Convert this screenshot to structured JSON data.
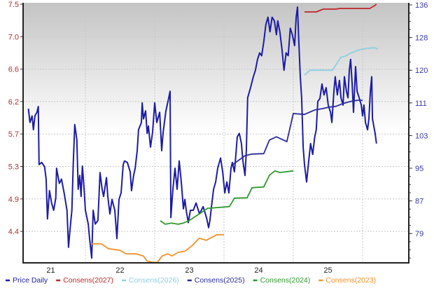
{
  "chart_data": {
    "type": "line",
    "title": "",
    "xlabel": "",
    "ylabel_left": "",
    "ylabel_right": "",
    "x_tick_labels": [
      "21",
      "22",
      "23",
      "24",
      "25"
    ],
    "left_tick_labels": [
      "7.5",
      "7.0",
      "6.6",
      "6.2",
      "5.7",
      "5.3",
      "4.9",
      "4.4"
    ],
    "right_tick_labels": [
      "136",
      "128",
      "120",
      "111",
      "103",
      "95",
      "87",
      "79"
    ],
    "left_axis_color": "#b03030",
    "right_axis_color": "#3a3aa8",
    "grid": true,
    "legend_position": "bottom",
    "background": "gradient gray to white",
    "series": [
      {
        "name": "Price Daily",
        "axis": "left",
        "color": "#1c1ca6",
        "points": [
          [
            "2021-03-07",
            6.06
          ],
          [
            "2021-03-15",
            5.87
          ],
          [
            "2021-03-26",
            5.96
          ],
          [
            "2021-04-02",
            5.77
          ],
          [
            "2021-04-10",
            5.96
          ],
          [
            "2021-04-21",
            6.01
          ],
          [
            "2021-04-28",
            6.09
          ],
          [
            "2021-05-02",
            5.29
          ],
          [
            "2021-05-16",
            5.32
          ],
          [
            "2021-05-31",
            5.26
          ],
          [
            "2021-06-08",
            5.09
          ],
          [
            "2021-06-15",
            4.54
          ],
          [
            "2021-06-26",
            4.93
          ],
          [
            "2021-07-07",
            4.76
          ],
          [
            "2021-07-18",
            4.66
          ],
          [
            "2021-07-29",
            4.83
          ],
          [
            "2021-08-02",
            5.24
          ],
          [
            "2021-08-17",
            5.03
          ],
          [
            "2021-08-28",
            5.09
          ],
          [
            "2021-09-11",
            4.9
          ],
          [
            "2021-09-26",
            4.66
          ],
          [
            "2021-10-04",
            4.15
          ],
          [
            "2021-10-11",
            4.37
          ],
          [
            "2021-10-22",
            4.66
          ],
          [
            "2021-10-29",
            5.29
          ],
          [
            "2021-11-06",
            5.84
          ],
          [
            "2021-11-17",
            5.63
          ],
          [
            "2021-11-24",
            4.95
          ],
          [
            "2021-12-02",
            5.14
          ],
          [
            "2021-12-09",
            4.85
          ],
          [
            "2021-12-16",
            5.27
          ],
          [
            "2021-12-24",
            5.0
          ],
          [
            "2022-01-01",
            4.66
          ],
          [
            "2022-01-16",
            4.47
          ],
          [
            "2022-01-23",
            4.27
          ],
          [
            "2022-02-03",
            4.0
          ],
          [
            "2022-02-11",
            4.66
          ],
          [
            "2022-02-22",
            4.47
          ],
          [
            "2022-03-08",
            4.52
          ],
          [
            "2022-03-19",
            5.18
          ],
          [
            "2022-03-30",
            4.95
          ],
          [
            "2022-04-07",
            4.85
          ],
          [
            "2022-04-22",
            5.11
          ],
          [
            "2022-04-29",
            4.85
          ],
          [
            "2022-05-10",
            4.61
          ],
          [
            "2022-05-21",
            4.81
          ],
          [
            "2022-06-05",
            4.66
          ],
          [
            "2022-06-16",
            4.27
          ],
          [
            "2022-06-27",
            4.81
          ],
          [
            "2022-07-08",
            4.9
          ],
          [
            "2022-07-19",
            5.29
          ],
          [
            "2022-07-26",
            5.34
          ],
          [
            "2022-08-10",
            5.32
          ],
          [
            "2022-08-25",
            5.19
          ],
          [
            "2022-09-01",
            4.93
          ],
          [
            "2022-09-12",
            5.14
          ],
          [
            "2022-09-20",
            5.24
          ],
          [
            "2022-10-01",
            5.48
          ],
          [
            "2022-10-08",
            5.77
          ],
          [
            "2022-10-23",
            5.87
          ],
          [
            "2022-10-27",
            6.14
          ],
          [
            "2022-11-03",
            5.92
          ],
          [
            "2022-11-14",
            6.03
          ],
          [
            "2022-11-22",
            5.72
          ],
          [
            "2022-11-29",
            5.82
          ],
          [
            "2022-12-10",
            5.53
          ],
          [
            "2022-12-21",
            5.74
          ],
          [
            "2023-01-01",
            6.14
          ],
          [
            "2023-01-12",
            5.87
          ],
          [
            "2023-01-27",
            6.01
          ],
          [
            "2023-02-07",
            5.48
          ],
          [
            "2023-02-14",
            5.72
          ],
          [
            "2023-03-01",
            6.03
          ],
          [
            "2023-03-12",
            6.16
          ],
          [
            "2023-03-23",
            6.3
          ],
          [
            "2023-03-27",
            4.56
          ],
          [
            "2023-04-07",
            4.95
          ],
          [
            "2023-04-18",
            5.24
          ],
          [
            "2023-04-29",
            4.95
          ],
          [
            "2023-05-10",
            5.34
          ],
          [
            "2023-05-21",
            5.05
          ],
          [
            "2023-06-01",
            4.68
          ],
          [
            "2023-06-09",
            4.81
          ],
          [
            "2023-06-16",
            4.66
          ],
          [
            "2023-06-27",
            4.49
          ],
          [
            "2023-07-08",
            4.66
          ],
          [
            "2023-07-23",
            4.66
          ],
          [
            "2023-08-07",
            4.76
          ],
          [
            "2023-08-25",
            4.61
          ],
          [
            "2023-09-13",
            4.71
          ],
          [
            "2023-10-01",
            4.56
          ],
          [
            "2023-10-12",
            4.42
          ],
          [
            "2023-10-19",
            4.52
          ],
          [
            "2023-10-27",
            4.71
          ],
          [
            "2023-11-07",
            4.95
          ],
          [
            "2023-11-18",
            5.05
          ],
          [
            "2023-11-29",
            5.24
          ],
          [
            "2023-12-14",
            5.38
          ],
          [
            "2023-12-25",
            5.19
          ],
          [
            "2024-01-05",
            4.9
          ],
          [
            "2024-01-16",
            5.05
          ],
          [
            "2024-01-27",
            4.9
          ],
          [
            "2024-02-07",
            5.24
          ],
          [
            "2024-02-14",
            5.32
          ],
          [
            "2024-02-25",
            5.19
          ],
          [
            "2024-03-04",
            5.43
          ],
          [
            "2024-03-11",
            5.67
          ],
          [
            "2024-03-22",
            5.72
          ],
          [
            "2024-04-02",
            5.58
          ],
          [
            "2024-04-10",
            5.34
          ],
          [
            "2024-04-21",
            5.14
          ],
          [
            "2024-04-28",
            5.48
          ],
          [
            "2024-05-05",
            6.21
          ],
          [
            "2024-05-20",
            6.35
          ],
          [
            "2024-06-04",
            6.5
          ],
          [
            "2024-06-15",
            6.59
          ],
          [
            "2024-06-26",
            6.74
          ],
          [
            "2024-07-07",
            6.83
          ],
          [
            "2024-07-18",
            6.79
          ],
          [
            "2024-07-29",
            6.98
          ],
          [
            "2024-08-09",
            7.22
          ],
          [
            "2024-08-20",
            7.32
          ],
          [
            "2024-08-31",
            7.12
          ],
          [
            "2024-09-11",
            7.32
          ],
          [
            "2024-09-23",
            7.27
          ],
          [
            "2024-10-04",
            7.08
          ],
          [
            "2024-10-11",
            7.27
          ],
          [
            "2024-10-22",
            7.12
          ],
          [
            "2024-11-02",
            6.88
          ],
          [
            "2024-11-13",
            6.59
          ],
          [
            "2024-11-24",
            6.83
          ],
          [
            "2024-12-05",
            6.79
          ],
          [
            "2024-12-16",
            7.17
          ],
          [
            "2024-12-27",
            7.08
          ],
          [
            "2025-01-08",
            6.93
          ],
          [
            "2025-01-16",
            7.32
          ],
          [
            "2025-01-23",
            7.46
          ],
          [
            "2025-01-30",
            6.98
          ],
          [
            "2025-02-07",
            6.5
          ],
          [
            "2025-02-14",
            6.21
          ],
          [
            "2025-02-22",
            5.53
          ],
          [
            "2025-03-01",
            5.29
          ],
          [
            "2025-03-12",
            5.05
          ],
          [
            "2025-03-23",
            5.34
          ],
          [
            "2025-04-02",
            5.58
          ],
          [
            "2025-04-13",
            5.43
          ],
          [
            "2025-04-24",
            5.67
          ],
          [
            "2025-05-02",
            5.77
          ],
          [
            "2025-05-10",
            6.16
          ],
          [
            "2025-05-21",
            6.2
          ],
          [
            "2025-06-01",
            6.4
          ],
          [
            "2025-06-12",
            6.25
          ],
          [
            "2025-06-23",
            6.35
          ],
          [
            "2025-07-04",
            6.11
          ],
          [
            "2025-07-16",
            6.01
          ],
          [
            "2025-07-23",
            5.87
          ],
          [
            "2025-08-03",
            6.3
          ],
          [
            "2025-08-10",
            6.5
          ],
          [
            "2025-08-21",
            6.25
          ],
          [
            "2025-09-01",
            6.45
          ],
          [
            "2025-09-09",
            6.21
          ],
          [
            "2025-09-20",
            6.11
          ],
          [
            "2025-09-27",
            6.5
          ],
          [
            "2025-10-08",
            6.3
          ],
          [
            "2025-10-16",
            6.21
          ],
          [
            "2025-10-23",
            6.59
          ],
          [
            "2025-10-30",
            6.74
          ],
          [
            "2025-11-07",
            6.4
          ],
          [
            "2025-11-14",
            6.01
          ],
          [
            "2025-11-25",
            6.64
          ],
          [
            "2025-12-03",
            6.3
          ],
          [
            "2025-12-14",
            6.21
          ],
          [
            "2025-12-25",
            6.11
          ],
          [
            "2026-01-01",
            5.96
          ],
          [
            "2026-01-08",
            6.11
          ],
          [
            "2026-01-16",
            5.87
          ],
          [
            "2026-01-27",
            5.77
          ],
          [
            "2026-02-03",
            5.92
          ],
          [
            "2026-02-11",
            6.3
          ],
          [
            "2026-02-18",
            6.5
          ],
          [
            "2026-02-22",
            5.92
          ],
          [
            "2026-03-01",
            5.82
          ],
          [
            "2026-03-08",
            5.72
          ],
          [
            "2026-03-15",
            5.58
          ]
        ]
      },
      {
        "name": "Consens(2027)",
        "axis": "right",
        "color": "#c0262b",
        "points": [
          [
            "2025-03-01",
            134.25
          ],
          [
            "2025-05-02",
            134.25
          ],
          [
            "2025-06-08",
            134.95
          ],
          [
            "2025-08-14",
            134.95
          ],
          [
            "2025-09-01",
            135.1
          ],
          [
            "2026-02-07",
            135.1
          ],
          [
            "2026-03-05",
            135.8
          ],
          [
            "2026-03-15",
            136.2
          ]
        ]
      },
      {
        "name": "Consens(2026)",
        "axis": "right",
        "color": "#8dcfe2",
        "points": [
          [
            "2025-03-01",
            118.5
          ],
          [
            "2025-03-30",
            119.7
          ],
          [
            "2025-07-26",
            119.7
          ],
          [
            "2025-09-08",
            122.9
          ],
          [
            "2025-10-01",
            123.2
          ],
          [
            "2025-10-27",
            123.9
          ],
          [
            "2025-12-14",
            124.8
          ],
          [
            "2026-01-27",
            125.2
          ],
          [
            "2026-03-05",
            125.3
          ],
          [
            "2026-03-23",
            125.0
          ]
        ]
      },
      {
        "name": "Consens(2025)",
        "axis": "right",
        "color": "#2a2a9c",
        "points": [
          [
            "2024-02-14",
            96.1
          ],
          [
            "2024-04-21",
            98.4
          ],
          [
            "2024-05-28",
            98.8
          ],
          [
            "2024-07-29",
            98.9
          ],
          [
            "2024-08-28",
            102.3
          ],
          [
            "2024-10-04",
            103.1
          ],
          [
            "2024-11-28",
            101.9
          ],
          [
            "2025-01-01",
            108.9
          ],
          [
            "2025-03-01",
            108.7
          ],
          [
            "2025-04-24",
            109.8
          ],
          [
            "2025-06-01",
            110.1
          ],
          [
            "2025-07-08",
            110.5
          ],
          [
            "2025-08-14",
            110.7
          ],
          [
            "2025-09-20",
            111.4
          ],
          [
            "2025-10-27",
            111.9
          ],
          [
            "2025-12-03",
            112.2
          ],
          [
            "2026-01-01",
            112.2
          ]
        ]
      },
      {
        "name": "Consens(2024)",
        "axis": "right",
        "color": "#2e9a2e",
        "points": [
          [
            "2023-01-30",
            82.2
          ],
          [
            "2023-02-25",
            81.3
          ],
          [
            "2023-03-30",
            81.6
          ],
          [
            "2023-05-05",
            81.3
          ],
          [
            "2023-06-01",
            81.6
          ],
          [
            "2023-07-01",
            82.2
          ],
          [
            "2023-08-25",
            83.9
          ],
          [
            "2023-10-08",
            85.3
          ],
          [
            "2023-10-19",
            85.3
          ],
          [
            "2024-01-30",
            85.7
          ],
          [
            "2024-02-25",
            87.8
          ],
          [
            "2024-05-02",
            87.9
          ],
          [
            "2024-05-28",
            90.4
          ],
          [
            "2024-07-29",
            90.6
          ],
          [
            "2024-08-28",
            93.5
          ],
          [
            "2024-09-26",
            94.6
          ],
          [
            "2024-10-22",
            94.2
          ],
          [
            "2025-01-01",
            94.6
          ]
        ]
      },
      {
        "name": "Consens(2023)",
        "axis": "right",
        "color": "#f0922a",
        "points": [
          [
            "2022-01-30",
            76.4
          ],
          [
            "2022-03-26",
            76.4
          ],
          [
            "2022-05-02",
            75.2
          ],
          [
            "2022-07-04",
            74.8
          ],
          [
            "2022-08-02",
            73.9
          ],
          [
            "2022-09-26",
            73.9
          ],
          [
            "2022-11-02",
            73.4
          ],
          [
            "2022-11-21",
            72.2
          ],
          [
            "2022-12-20",
            71.8
          ],
          [
            "2023-01-15",
            71.8
          ],
          [
            "2023-02-10",
            73.4
          ],
          [
            "2023-03-11",
            73.9
          ],
          [
            "2023-04-02",
            73.4
          ],
          [
            "2023-05-05",
            74.3
          ],
          [
            "2023-06-11",
            74.6
          ],
          [
            "2023-07-18",
            76.0
          ],
          [
            "2023-08-24",
            77.8
          ],
          [
            "2023-09-30",
            77.3
          ],
          [
            "2023-11-24",
            78.7
          ],
          [
            "2024-01-01",
            78.7
          ]
        ]
      }
    ]
  }
}
